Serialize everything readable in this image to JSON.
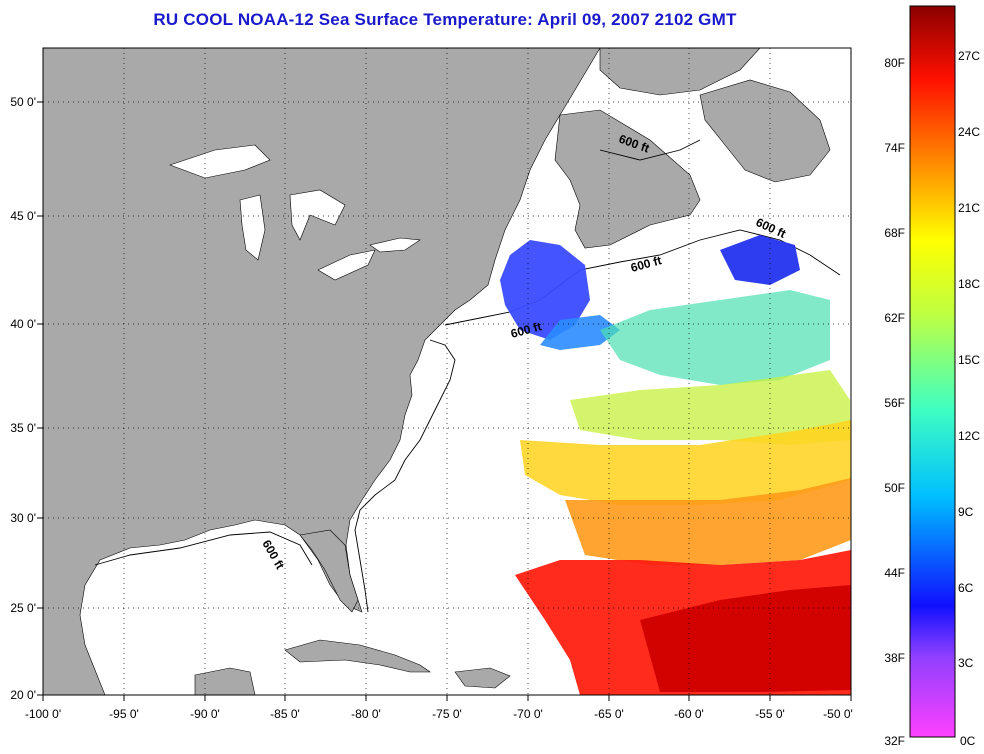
{
  "title": "RU COOL  NOAA-12  Sea Surface Temperature:  April 09, 2007 2102 GMT",
  "map": {
    "lon_range": [
      -100,
      -50
    ],
    "lat_range": [
      20,
      52.5
    ],
    "lon_ticks": [
      "-100 0'",
      "-95 0'",
      "-90 0'",
      "-85 0'",
      "-80 0'",
      "-75 0'",
      "-70 0'",
      "-65 0'",
      "-60 0'",
      "-55 0'",
      "-50 0'"
    ],
    "lat_ticks": [
      "20 0'",
      "25 0'",
      "30 0'",
      "35 0'",
      "40 0'",
      "45 0'",
      "50 0'"
    ],
    "grid": true,
    "land_color": "#a9a9a9",
    "ocean_color": "#ffffff",
    "isobath_labels": [
      "600 ft",
      "600 ft",
      "600 ft",
      "600 ft",
      "600 ft"
    ]
  },
  "colorbar": {
    "fahrenheit_labels": [
      "32F",
      "38F",
      "44F",
      "50F",
      "56F",
      "62F",
      "68F",
      "74F",
      "80F"
    ],
    "celsius_labels": [
      "0C",
      "3C",
      "6C",
      "9C",
      "12C",
      "15C",
      "18C",
      "21C",
      "24C",
      "27C"
    ],
    "colors": [
      "#ff40ff",
      "#9040ff",
      "#1010ff",
      "#00c0ff",
      "#40ffc0",
      "#c0ff40",
      "#ffff00",
      "#ff9000",
      "#ff1000",
      "#8b0000"
    ]
  }
}
